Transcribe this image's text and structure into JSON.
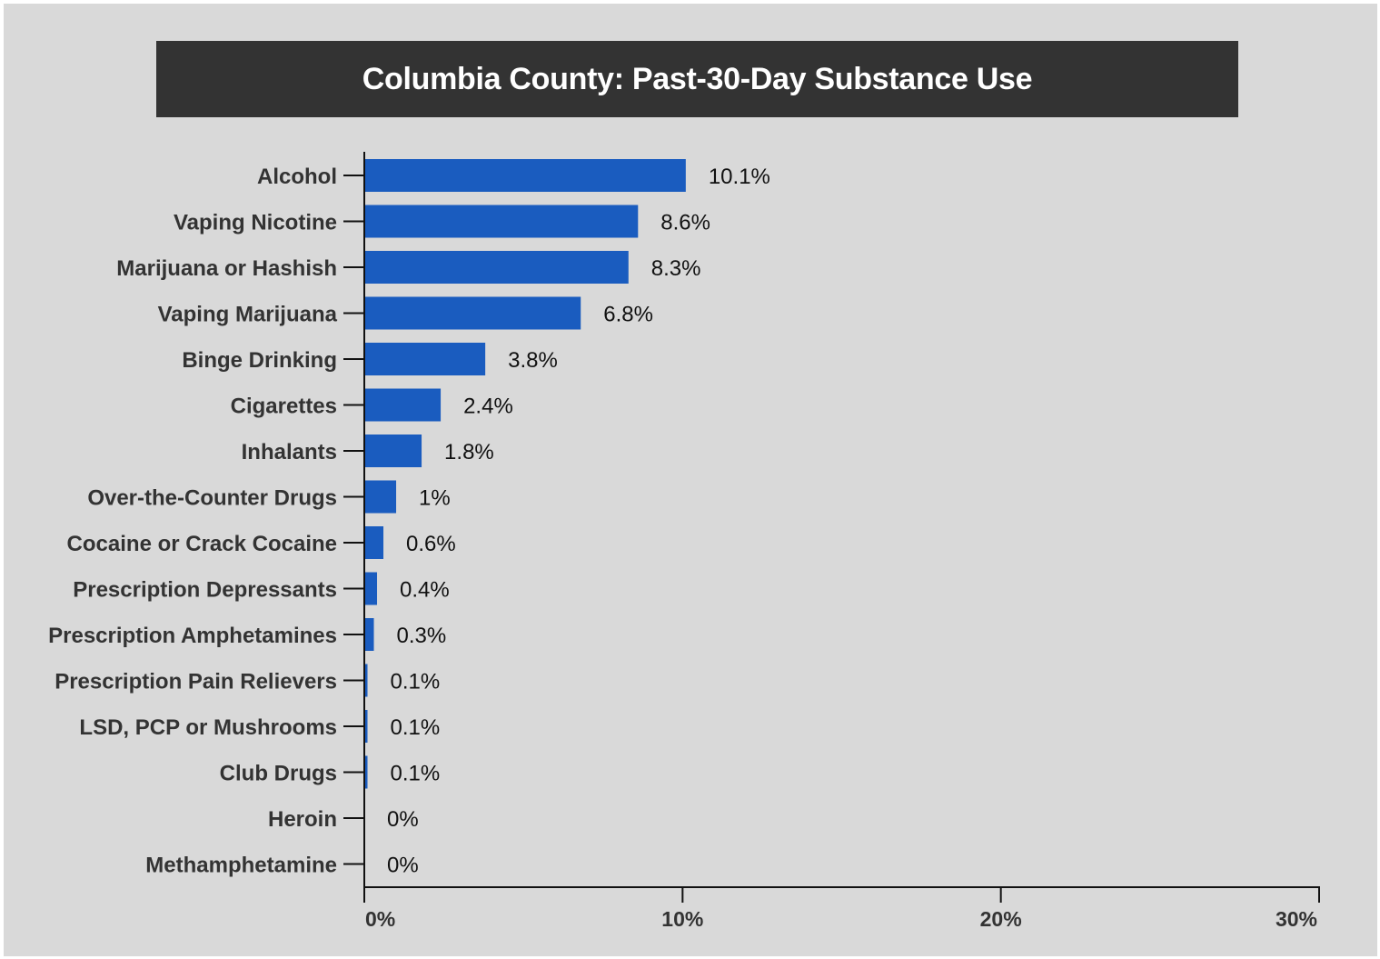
{
  "colors": {
    "background": "#d9d9d9",
    "title_bar": "#333333",
    "title_text": "#ffffff",
    "bar": "#1a5cbf",
    "axis": "#111111",
    "label_text": "#333333"
  },
  "chart_data": {
    "type": "bar",
    "orientation": "horizontal",
    "title": "Columbia County: Past-30-Day Substance Use",
    "xlabel": "",
    "ylabel": "",
    "xlim": [
      0,
      30
    ],
    "x_ticks": [
      0,
      10,
      20,
      30
    ],
    "x_tick_labels": [
      "0%",
      "10%",
      "20%",
      "30%"
    ],
    "grid": false,
    "categories": [
      "Alcohol",
      "Vaping Nicotine",
      "Marijuana or Hashish",
      "Vaping Marijuana",
      "Binge Drinking",
      "Cigarettes",
      "Inhalants",
      "Over-the-Counter Drugs",
      "Cocaine or Crack Cocaine",
      "Prescription Depressants",
      "Prescription Amphetamines",
      "Prescription Pain Relievers",
      "LSD, PCP or Mushrooms",
      "Club Drugs",
      "Heroin",
      "Methamphetamine"
    ],
    "values": [
      10.1,
      8.6,
      8.3,
      6.8,
      3.8,
      2.4,
      1.8,
      1,
      0.6,
      0.4,
      0.3,
      0.1,
      0.1,
      0.1,
      0,
      0
    ],
    "value_labels": [
      "10.1%",
      "8.6%",
      "8.3%",
      "6.8%",
      "3.8%",
      "2.4%",
      "1.8%",
      "1%",
      "0.6%",
      "0.4%",
      "0.3%",
      "0.1%",
      "0.1%",
      "0.1%",
      "0%",
      "0%"
    ]
  }
}
